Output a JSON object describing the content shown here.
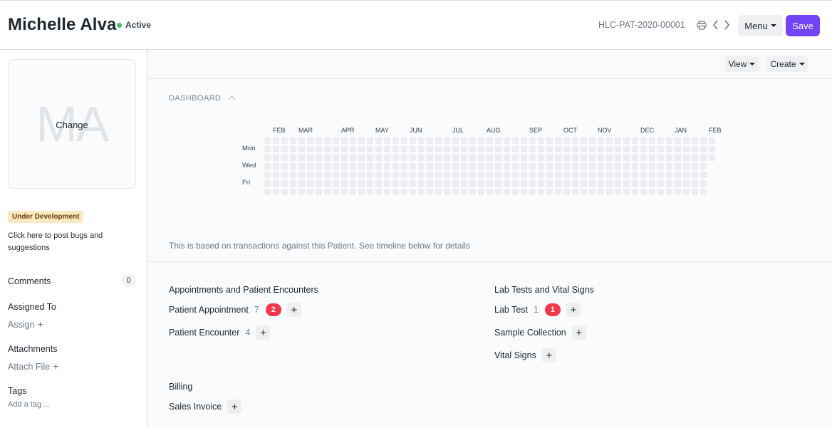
{
  "header": {
    "title": "Michelle Alva",
    "status": "Active",
    "status_color": "#48bb74",
    "doc_id": "HLC-PAT-2020-00001",
    "icons": [
      "printer-icon",
      "chevron-left-icon",
      "chevron-right-icon"
    ],
    "menu_label": "Menu",
    "save_label": "Save",
    "accent_color": "#7244f5"
  },
  "sidebar": {
    "avatar_initials": "MA",
    "avatar_change": "Change",
    "dev_badge": "Under Development",
    "dev_link": "Click here to post bugs and suggestions",
    "comments_label": "Comments",
    "comments_count": "0",
    "assigned_label": "Assigned To",
    "assign_action": "Assign",
    "attachments_label": "Attachments",
    "attach_action": "Attach File",
    "tags_label": "Tags",
    "add_tag": "Add a tag ..."
  },
  "toolbar": {
    "view_label": "View",
    "create_label": "Create"
  },
  "dashboard": {
    "heading": "DASHBOARD",
    "months": [
      "FEB",
      "MAR",
      "APR",
      "MAY",
      "JUN",
      "JUL",
      "AUG",
      "SEP",
      "OCT",
      "NOV",
      "DEC",
      "JAN",
      "FEB"
    ],
    "days": [
      "Mon",
      "Wed",
      "Fri"
    ],
    "note": "This is based on transactions against this Patient. See timeline below for details"
  },
  "connections": {
    "groups": [
      {
        "title": "Appointments and Patient Encounters",
        "items": [
          {
            "label": "Patient Appointment",
            "count": "7",
            "badge": "2"
          },
          {
            "label": "Patient Encounter",
            "count": "4",
            "badge": ""
          }
        ]
      },
      {
        "title": "Lab Tests and Vital Signs",
        "items": [
          {
            "label": "Lab Test",
            "count": "1",
            "badge": "1"
          },
          {
            "label": "Sample Collection",
            "count": "",
            "badge": ""
          },
          {
            "label": "Vital Signs",
            "count": "",
            "badge": ""
          }
        ]
      },
      {
        "title": "Billing",
        "items": [
          {
            "label": "Sales Invoice",
            "count": "",
            "badge": ""
          }
        ]
      }
    ]
  }
}
